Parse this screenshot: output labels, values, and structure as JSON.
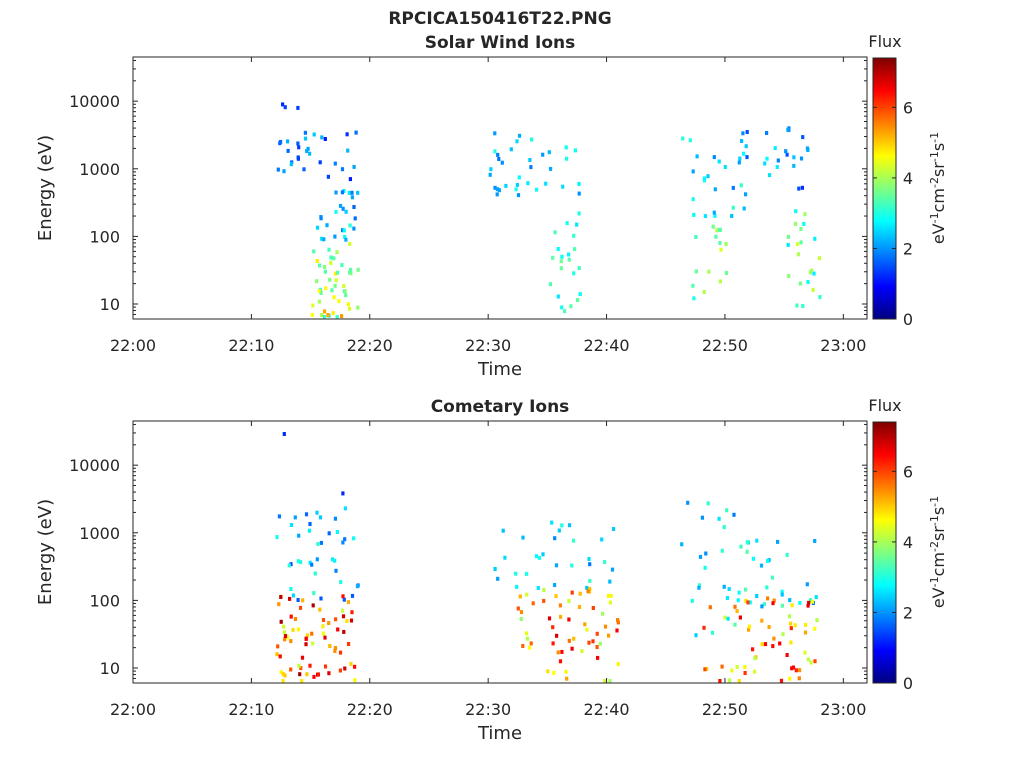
{
  "figure_title": "RPCICA150416T22.PNG",
  "colormap": "jet",
  "chart_data": [
    {
      "type": "heatmap",
      "title": "Solar Wind Ions",
      "xlabel": "Time",
      "ylabel": "Energy (eV)",
      "x_ticks": [
        "22:00",
        "22:10",
        "22:20",
        "22:30",
        "22:40",
        "22:50",
        "23:00"
      ],
      "xlim": [
        "22:00",
        "23:02"
      ],
      "y_ticks": [
        10,
        100,
        1000,
        10000
      ],
      "y_tick_labels": [
        "10",
        "100",
        "1000",
        "10000"
      ],
      "ylim": [
        6,
        45000
      ],
      "yscale": "log",
      "colorbar": {
        "title": "Flux",
        "label": "eV-1cm-2sr-1s-1",
        "ticks": [
          0,
          2,
          4,
          6
        ],
        "range": [
          0,
          7.4
        ]
      },
      "features": [
        {
          "t_start": "22:12",
          "t_end": "22:13",
          "e_min": 7000,
          "e_max": 9000,
          "flux_min": 1.0,
          "flux_max": 1.6,
          "count": 3
        },
        {
          "t_start": "22:12",
          "t_end": "22:14",
          "e_min": 800,
          "e_max": 3500,
          "flux_min": 1.2,
          "flux_max": 2.4,
          "count": 16
        },
        {
          "t_start": "22:14",
          "t_end": "22:18",
          "e_min": 700,
          "e_max": 3500,
          "flux_min": 1.0,
          "flux_max": 2.4,
          "count": 14
        },
        {
          "t_start": "22:15",
          "t_end": "22:18",
          "e_min": 60,
          "e_max": 600,
          "flux_min": 1.6,
          "flux_max": 3.0,
          "count": 26
        },
        {
          "t_start": "22:15",
          "t_end": "22:18",
          "e_min": 6,
          "e_max": 80,
          "flux_min": 3.0,
          "flux_max": 4.8,
          "count": 44
        },
        {
          "t_start": "22:16",
          "t_end": "22:17",
          "e_min": 6,
          "e_max": 8,
          "flux_min": 5.0,
          "flux_max": 5.6,
          "count": 3
        },
        {
          "t_start": "22:30",
          "t_end": "22:37",
          "e_min": 400,
          "e_max": 3500,
          "flux_min": 1.8,
          "flux_max": 3.0,
          "count": 34
        },
        {
          "t_start": "22:35",
          "t_end": "22:37",
          "e_min": 6,
          "e_max": 300,
          "flux_min": 2.6,
          "flux_max": 3.6,
          "count": 22
        },
        {
          "t_start": "22:46",
          "t_end": "22:51",
          "e_min": 150,
          "e_max": 3000,
          "flux_min": 1.8,
          "flux_max": 3.2,
          "count": 26
        },
        {
          "t_start": "22:47",
          "t_end": "22:50",
          "e_min": 6,
          "e_max": 150,
          "flux_min": 2.6,
          "flux_max": 4.4,
          "count": 16
        },
        {
          "t_start": "22:51",
          "t_end": "22:56",
          "e_min": 500,
          "e_max": 4000,
          "flux_min": 1.2,
          "flux_max": 2.8,
          "count": 24
        },
        {
          "t_start": "22:55",
          "t_end": "22:57",
          "e_min": 6,
          "e_max": 250,
          "flux_min": 2.6,
          "flux_max": 4.4,
          "count": 22
        }
      ]
    },
    {
      "type": "heatmap",
      "title": "Cometary Ions",
      "xlabel": "Time",
      "ylabel": "Energy (eV)",
      "x_ticks": [
        "22:00",
        "22:10",
        "22:20",
        "22:30",
        "22:40",
        "22:50",
        "23:00"
      ],
      "xlim": [
        "22:00",
        "23:02"
      ],
      "y_ticks": [
        10,
        100,
        1000,
        10000
      ],
      "y_tick_labels": [
        "10",
        "100",
        "1000",
        "10000"
      ],
      "ylim": [
        6,
        45000
      ],
      "yscale": "log",
      "colorbar": {
        "title": "Flux",
        "label": "eV-1cm-2sr-1s-1",
        "ticks": [
          0,
          2,
          4,
          6
        ],
        "range": [
          0,
          7.4
        ]
      },
      "features": [
        {
          "t_start": "22:12",
          "t_end": "22:12",
          "e_min": 28000,
          "e_max": 31000,
          "flux_min": 1.0,
          "flux_max": 1.4,
          "count": 1
        },
        {
          "t_start": "22:12",
          "t_end": "22:18",
          "e_min": 100,
          "e_max": 2500,
          "flux_min": 1.4,
          "flux_max": 3.2,
          "count": 40
        },
        {
          "t_start": "22:12",
          "t_end": "22:18",
          "e_min": 6,
          "e_max": 120,
          "flux_min": 4.2,
          "flux_max": 7.2,
          "count": 70
        },
        {
          "t_start": "22:17",
          "t_end": "22:17",
          "e_min": 3500,
          "e_max": 4000,
          "flux_min": 1.0,
          "flux_max": 1.4,
          "count": 1
        },
        {
          "t_start": "22:30",
          "t_end": "22:40",
          "e_min": 120,
          "e_max": 1500,
          "flux_min": 1.8,
          "flux_max": 3.2,
          "count": 30
        },
        {
          "t_start": "22:32",
          "t_end": "22:40",
          "e_min": 6,
          "e_max": 150,
          "flux_min": 3.8,
          "flux_max": 6.8,
          "count": 60
        },
        {
          "t_start": "22:46",
          "t_end": "22:51",
          "e_min": 30,
          "e_max": 3000,
          "flux_min": 1.8,
          "flux_max": 3.4,
          "count": 26
        },
        {
          "t_start": "22:48",
          "t_end": "22:50",
          "e_min": 6,
          "e_max": 100,
          "flux_min": 4.0,
          "flux_max": 6.6,
          "count": 12
        },
        {
          "t_start": "22:51",
          "t_end": "22:57",
          "e_min": 80,
          "e_max": 800,
          "flux_min": 1.8,
          "flux_max": 3.4,
          "count": 26
        },
        {
          "t_start": "22:51",
          "t_end": "22:57",
          "e_min": 6,
          "e_max": 120,
          "flux_min": 4.0,
          "flux_max": 6.8,
          "count": 48
        }
      ]
    }
  ]
}
